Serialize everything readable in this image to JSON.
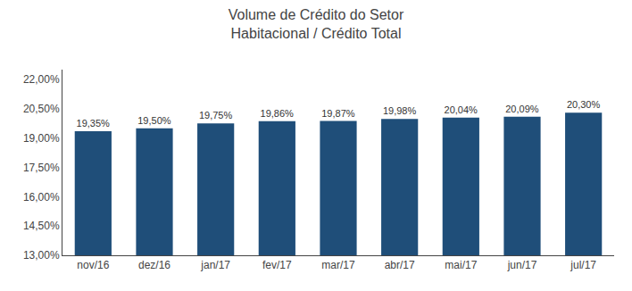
{
  "chart_data": {
    "type": "bar",
    "title": "Volume de Crédito do Setor\nHabitacional / Crédito Total",
    "categories": [
      "nov/16",
      "dez/16",
      "jan/17",
      "fev/17",
      "mar/17",
      "abr/17",
      "mai/17",
      "jun/17",
      "jul/17"
    ],
    "values": [
      19.35,
      19.5,
      19.75,
      19.86,
      19.87,
      19.98,
      20.04,
      20.09,
      20.3
    ],
    "value_labels": [
      "19,35%",
      "19,50%",
      "19,75%",
      "19,86%",
      "19,87%",
      "19,98%",
      "20,04%",
      "20,09%",
      "20,30%"
    ],
    "data_labels": true,
    "color": "#1F4E79",
    "ylim": [
      13.0,
      22.5
    ],
    "yticks": [
      {
        "value": 13.0,
        "label": "13,00%"
      },
      {
        "value": 14.5,
        "label": "14,50%"
      },
      {
        "value": 16.0,
        "label": "16,00%"
      },
      {
        "value": 17.5,
        "label": "17,50%"
      },
      {
        "value": 19.0,
        "label": "19,00%"
      },
      {
        "value": 20.5,
        "label": "20,50%"
      },
      {
        "value": 22.0,
        "label": "22,00%"
      }
    ],
    "grid": false
  }
}
